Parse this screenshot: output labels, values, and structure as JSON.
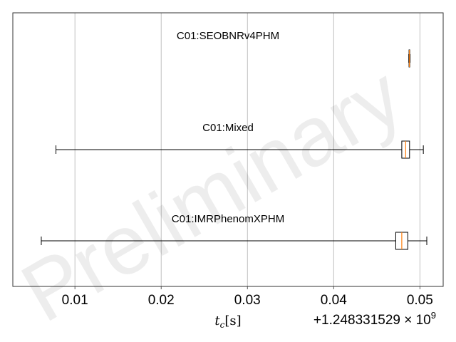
{
  "chart_data": {
    "type": "box",
    "orientation": "horizontal",
    "watermark": "Preliminary",
    "xlabel": "t_c [s]",
    "xlabel_parts": {
      "symbol": "t",
      "subscript": "c",
      "unit": "[s]"
    },
    "x_offset_label": "+1.248331529 × 10",
    "x_offset_exponent": "9",
    "xlim": [
      0.0028,
      0.0527
    ],
    "xticks": [
      0.01,
      0.02,
      0.03,
      0.04,
      0.05
    ],
    "xtick_labels": [
      "0.01",
      "0.02",
      "0.03",
      "0.04",
      "0.05"
    ],
    "grid": "vertical",
    "accent_colors": {
      "median": "#ff7f0e",
      "box": "#000000",
      "grid": "#b0b0b0"
    },
    "series": [
      {
        "name": "C01:SEOBNRv4PHM",
        "whisker_low": 0.04871,
        "q1": 0.04874,
        "median": 0.04878,
        "q3": 0.04882,
        "whisker_high": 0.04886
      },
      {
        "name": "C01:Mixed",
        "whisker_low": 0.0078,
        "q1": 0.0479,
        "median": 0.04835,
        "q3": 0.0488,
        "whisker_high": 0.0504
      },
      {
        "name": "C01:IMRPhenomXPHM",
        "whisker_low": 0.0061,
        "q1": 0.0472,
        "median": 0.0479,
        "q3": 0.0486,
        "whisker_high": 0.0508
      }
    ]
  }
}
